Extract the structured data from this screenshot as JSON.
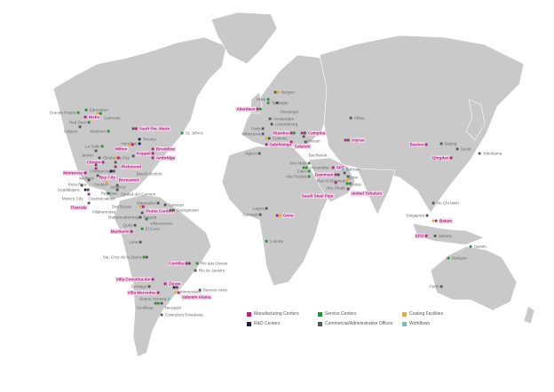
{
  "colors": {
    "land": "#c9c9c9",
    "manufacturing": "#b0267f",
    "service": "#2e8b3a",
    "coating": "#e8a83a",
    "rnd": "#1d1b4e",
    "commercial": "#555555",
    "workflow": "#5fc6c6"
  },
  "legend": [
    {
      "key": "m",
      "label": "Manufacturing Centers"
    },
    {
      "key": "s",
      "label": "Service Centers"
    },
    {
      "key": "c",
      "label": "Coating Facilities"
    },
    {
      "key": "r",
      "label": "R&D Centers"
    },
    {
      "key": "o",
      "label": "Commercial/Administrative Offices"
    },
    {
      "key": "w",
      "label": "Workflows"
    }
  ],
  "locations": [
    {
      "label": "Grande Prairie",
      "types": [
        "s"
      ]
    },
    {
      "label": "Edmonton",
      "types": [
        "s"
      ]
    },
    {
      "label": "Camrose",
      "types": [
        "c",
        "s"
      ]
    },
    {
      "label": "Nisku",
      "types": [
        "m"
      ]
    },
    {
      "label": "Red Deer",
      "types": [
        "s"
      ]
    },
    {
      "label": "Calgary",
      "types": [
        "o"
      ]
    },
    {
      "label": "Weyburn",
      "types": [
        "s"
      ]
    },
    {
      "label": "Sault Ste. Marie",
      "types": [
        "o",
        "m"
      ]
    },
    {
      "label": "St. John's",
      "types": [
        "s"
      ]
    },
    {
      "label": "Toronto",
      "types": [
        "r"
      ]
    },
    {
      "label": "Hamilton",
      "types": [
        "r"
      ]
    },
    {
      "label": "Milton",
      "types": [
        "c",
        "m"
      ]
    },
    {
      "label": "Brookline",
      "types": [
        "m"
      ]
    },
    {
      "label": "Koppel",
      "types": [
        "m"
      ]
    },
    {
      "label": "Ambridge",
      "types": [
        "m"
      ]
    },
    {
      "label": "La Salle",
      "types": [
        "s"
      ]
    },
    {
      "label": "Jenner",
      "types": [
        "o"
      ]
    },
    {
      "label": "Oklahoma City",
      "types": [
        "o"
      ]
    },
    {
      "label": "Rickmond",
      "types": [
        "c",
        "m"
      ]
    },
    {
      "label": "Beech Bottom",
      "types": [
        "o"
      ]
    },
    {
      "label": "Clinton",
      "types": [
        "m"
      ]
    },
    {
      "label": "Chattanooga",
      "types": [
        "o"
      ]
    },
    {
      "label": "Midland",
      "types": [
        "o"
      ]
    },
    {
      "label": "Bay City",
      "types": [
        "m"
      ]
    },
    {
      "label": "Brunswick",
      "types": [
        "m"
      ]
    },
    {
      "label": "Houston",
      "types": [
        "r",
        "o"
      ]
    },
    {
      "label": "Monterrey",
      "types": [
        "m"
      ]
    },
    {
      "label": "Reynosa",
      "types": [
        "o"
      ]
    },
    {
      "label": "Poza Rica",
      "types": [
        "o"
      ]
    },
    {
      "label": "Veracruz",
      "types": [
        "c"
      ]
    },
    {
      "label": "Guadalajara",
      "types": [
        "o"
      ]
    },
    {
      "label": "Ciudad del Carmen",
      "types": [
        "o"
      ]
    },
    {
      "label": "Coatzacoalcos",
      "types": [
        "o"
      ]
    },
    {
      "label": "Mexico City",
      "types": [
        "r",
        "o"
      ]
    },
    {
      "label": "Dos Bocas",
      "types": [
        "s"
      ]
    },
    {
      "label": "Tlaxcala",
      "types": [
        "m"
      ]
    },
    {
      "label": "Villahermosa",
      "types": [
        "o"
      ]
    },
    {
      "label": "Maracaibo",
      "types": [
        "o"
      ]
    },
    {
      "label": "Caracas",
      "types": [
        "o"
      ]
    },
    {
      "label": "Georgetown",
      "types": [
        "s",
        "o"
      ]
    },
    {
      "label": "Punta Cardón",
      "types": [
        "c",
        "m"
      ]
    },
    {
      "label": "Barrancabermeja",
      "types": [
        "o"
      ]
    },
    {
      "label": "Bogotá",
      "types": [
        "o"
      ]
    },
    {
      "label": "Villavicencio",
      "types": [
        "s"
      ]
    },
    {
      "label": "Quito",
      "types": [
        "o"
      ]
    },
    {
      "label": "Machachi",
      "types": [
        "m"
      ]
    },
    {
      "label": "El Coca",
      "types": [
        "s"
      ]
    },
    {
      "label": "Lima",
      "types": [
        "o"
      ]
    },
    {
      "label": "Sta. Cruz de la Sierra",
      "types": [
        "s",
        "o"
      ]
    },
    {
      "label": "Curitiba",
      "types": [
        "m",
        "o"
      ]
    },
    {
      "label": "Rio das Ostras",
      "types": [
        "s"
      ]
    },
    {
      "label": "Rio de Janeiro",
      "types": [
        "o"
      ]
    },
    {
      "label": "Villa Constitución",
      "types": [
        "m"
      ]
    },
    {
      "label": "Zárate",
      "types": [
        "m"
      ]
    },
    {
      "label": "Santiago",
      "types": [
        "o"
      ]
    },
    {
      "label": "Montevideo",
      "types": [
        "r",
        "o"
      ]
    },
    {
      "label": "Buenos Aires",
      "types": [
        "o"
      ]
    },
    {
      "label": "Villa Mercedes",
      "types": [
        "m"
      ]
    },
    {
      "label": "Valentín Alsina",
      "types": [
        "c",
        "m"
      ]
    },
    {
      "label": "Buena Ventura",
      "types": [
        "w"
      ]
    },
    {
      "label": "Senillosa",
      "types": [
        "s",
        "s"
      ]
    },
    {
      "label": "Neuquén",
      "types": [
        "o"
      ]
    },
    {
      "label": "Comodoro Rivadavia",
      "types": [
        "o"
      ]
    },
    {
      "label": "Bergen",
      "types": [
        "o",
        "c"
      ]
    },
    {
      "label": "Hove",
      "types": [
        "s"
      ]
    },
    {
      "label": "Tananger",
      "types": [
        "s"
      ]
    },
    {
      "label": "Stavanger",
      "types": [
        "o"
      ]
    },
    {
      "label": "Aberdeen",
      "types": [
        "m",
        "s"
      ]
    },
    {
      "label": "Amsterdam",
      "types": [
        "o"
      ]
    },
    {
      "label": "Luxembourg",
      "types": [
        "o"
      ]
    },
    {
      "label": "Paris",
      "types": [
        "o"
      ]
    },
    {
      "label": "Villanueva",
      "types": [
        "o"
      ]
    },
    {
      "label": "Dalmine",
      "types": [
        "c",
        "o"
      ]
    },
    {
      "label": "Sabiñánigo",
      "types": [
        "m"
      ]
    },
    {
      "label": "Skawina",
      "types": [
        "m",
        "s"
      ]
    },
    {
      "label": "Campina",
      "types": [
        "m",
        "o"
      ]
    },
    {
      "label": "Ploiești",
      "types": [
        "o"
      ]
    },
    {
      "label": "Calarasi",
      "types": [
        "m"
      ]
    },
    {
      "label": "Bucharest",
      "types": [
        "o"
      ]
    },
    {
      "label": "Algiers",
      "types": [
        "o"
      ]
    },
    {
      "label": "Aktau",
      "types": [
        "o"
      ]
    },
    {
      "label": "Atyrau",
      "types": [
        "m",
        "o"
      ]
    },
    {
      "label": "Abu Madi",
      "types": [
        "s"
      ]
    },
    {
      "label": "Alexandria",
      "types": [
        "s",
        "s"
      ]
    },
    {
      "label": "Cairo",
      "types": [
        "s"
      ]
    },
    {
      "label": "Abu Rudeis",
      "types": [
        "s"
      ]
    },
    {
      "label": "SPT",
      "types": [
        "m"
      ]
    },
    {
      "label": "Dammam",
      "types": [
        "m",
        "o"
      ]
    },
    {
      "label": "Bahrain",
      "types": [
        "w"
      ]
    },
    {
      "label": "Qatar",
      "types": [
        "o"
      ]
    },
    {
      "label": "Ras Al Khaimah",
      "types": [
        "o"
      ]
    },
    {
      "label": "Dubai",
      "types": [
        "c"
      ]
    },
    {
      "label": "Abu Dhabi",
      "types": [
        "s",
        "s"
      ]
    },
    {
      "label": "Saudi Steel Pipe",
      "types": [
        "m"
      ]
    },
    {
      "label": "United Tubulars",
      "types": [
        "m"
      ]
    },
    {
      "label": "Lagos",
      "types": [
        "o"
      ]
    },
    {
      "label": "Takoradi",
      "types": [
        "o"
      ]
    },
    {
      "label": "Onne",
      "types": [
        "m",
        "c"
      ]
    },
    {
      "label": "Luanda",
      "types": [
        "s"
      ]
    },
    {
      "label": "Baotou",
      "types": [
        "m"
      ]
    },
    {
      "label": "Beijing",
      "types": [
        "o"
      ]
    },
    {
      "label": "Seoul",
      "types": [
        "o"
      ]
    },
    {
      "label": "Qingdao",
      "types": [
        "m"
      ]
    },
    {
      "label": "Yokohama",
      "types": [
        "o"
      ]
    },
    {
      "label": "Ho Chi Minh",
      "types": [
        "o"
      ]
    },
    {
      "label": "Singapore",
      "types": [
        "o"
      ]
    },
    {
      "label": "Batam",
      "types": [
        "c",
        "m"
      ]
    },
    {
      "label": "SPIJ",
      "types": [
        "m"
      ]
    },
    {
      "label": "Jakarta",
      "types": [
        "o"
      ]
    },
    {
      "label": "Darwin",
      "types": [
        "s"
      ]
    },
    {
      "label": "Dampier",
      "types": [
        "s"
      ]
    },
    {
      "label": "Perth",
      "types": [
        "o"
      ]
    }
  ]
}
